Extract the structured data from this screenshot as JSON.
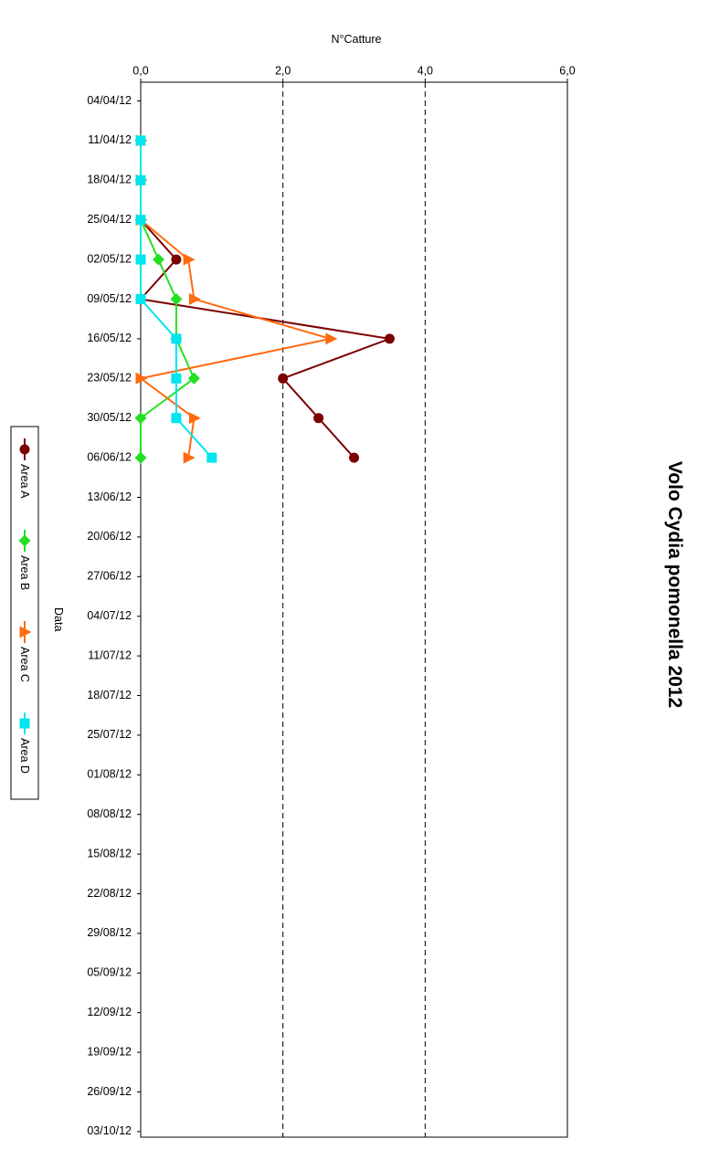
{
  "chart_data": {
    "type": "line",
    "orientation": "rotated-90-clockwise",
    "title": "Volo Cydia pomonella 2012",
    "xlabel": "Data",
    "ylabel": "N°Catture",
    "ylim": [
      0,
      6
    ],
    "yticks": [
      "0,0",
      "2,0",
      "4,0",
      "6,0"
    ],
    "grid": "dashed value gridlines",
    "legend_position": "bottom",
    "categories": [
      "04/04/12",
      "11/04/12",
      "18/04/12",
      "25/04/12",
      "02/05/12",
      "09/05/12",
      "16/05/12",
      "23/05/12",
      "30/05/12",
      "06/06/12",
      "13/06/12",
      "20/06/12",
      "27/06/12",
      "04/07/12",
      "11/07/12",
      "18/07/12",
      "25/07/12",
      "01/08/12",
      "08/08/12",
      "15/08/12",
      "22/08/12",
      "29/08/12",
      "05/09/12",
      "12/09/12",
      "19/09/12",
      "26/09/12",
      "03/10/12"
    ],
    "series": [
      {
        "name": "Area A",
        "color": "#7b0000",
        "marker": "circle",
        "points": [
          [
            "11/04/12",
            0
          ],
          [
            "18/04/12",
            0
          ],
          [
            "25/04/12",
            0
          ],
          [
            "02/05/12",
            0.5
          ],
          [
            "09/05/12",
            0
          ],
          [
            "16/05/12",
            3.5
          ],
          [
            "23/05/12",
            2.0
          ],
          [
            "30/05/12",
            2.5
          ],
          [
            "06/06/12",
            3.0
          ]
        ]
      },
      {
        "name": "Area B",
        "color": "#22e022",
        "marker": "diamond",
        "points": [
          [
            "11/04/12",
            0
          ],
          [
            "18/04/12",
            0
          ],
          [
            "25/04/12",
            0
          ],
          [
            "02/05/12",
            0.25
          ],
          [
            "09/05/12",
            0.5
          ],
          [
            "16/05/12",
            0.5
          ],
          [
            "23/05/12",
            0.75
          ],
          [
            "30/05/12",
            0
          ],
          [
            "06/06/12",
            0
          ]
        ]
      },
      {
        "name": "Area C",
        "color": "#ff6a10",
        "marker": "triangle",
        "points": [
          [
            "11/04/12",
            0
          ],
          [
            "18/04/12",
            0
          ],
          [
            "25/04/12",
            0
          ],
          [
            "02/05/12",
            0.67
          ],
          [
            "09/05/12",
            0.75
          ],
          [
            "16/05/12",
            2.67
          ],
          [
            "23/05/12",
            0
          ],
          [
            "30/05/12",
            0.75
          ],
          [
            "06/06/12",
            0.67
          ]
        ]
      },
      {
        "name": "Area D",
        "color": "#00e5ee",
        "marker": "square",
        "points": [
          [
            "11/04/12",
            0
          ],
          [
            "18/04/12",
            0
          ],
          [
            "25/04/12",
            0
          ],
          [
            "02/05/12",
            0
          ],
          [
            "09/05/12",
            0
          ],
          [
            "16/05/12",
            0.5
          ],
          [
            "23/05/12",
            0.5
          ],
          [
            "30/05/12",
            0.5
          ],
          [
            "06/06/12",
            1.0
          ]
        ]
      }
    ]
  }
}
